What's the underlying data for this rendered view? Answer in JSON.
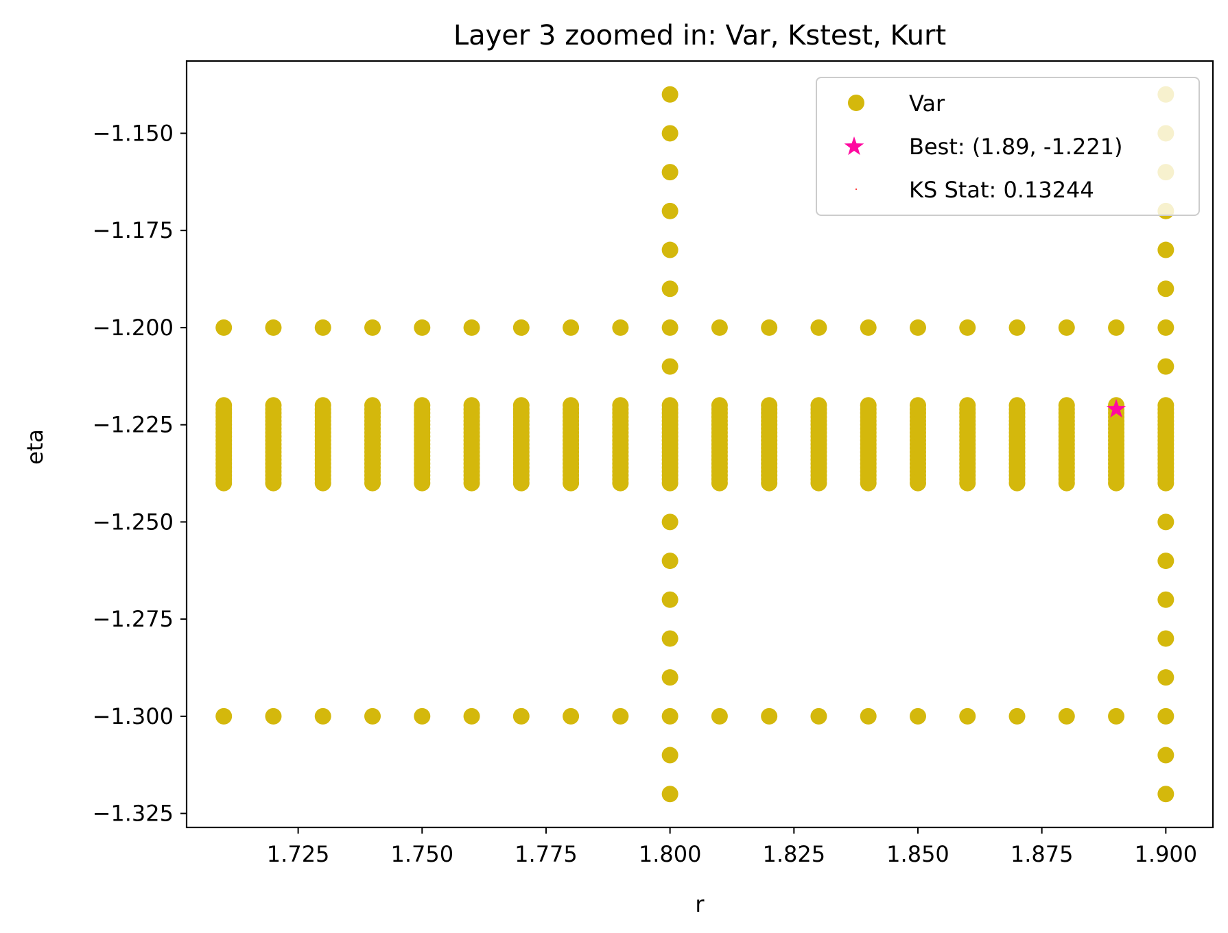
{
  "chart_data": {
    "type": "scatter",
    "title": "Layer 3 zoomed in: Var, Kstest, Kurt",
    "xlabel": "r",
    "ylabel": "eta",
    "xlim": [
      1.7025,
      1.9095
    ],
    "ylim": [
      -1.3286,
      -1.1314
    ],
    "xticks": [
      1.725,
      1.75,
      1.775,
      1.8,
      1.825,
      1.85,
      1.875,
      1.9
    ],
    "xtick_labels": [
      "1.725",
      "1.750",
      "1.775",
      "1.800",
      "1.825",
      "1.850",
      "1.875",
      "1.900"
    ],
    "yticks": [
      -1.15,
      -1.175,
      -1.2,
      -1.225,
      -1.25,
      -1.275,
      -1.3,
      -1.325
    ],
    "ytick_labels": [
      "−1.150",
      "−1.175",
      "−1.200",
      "−1.225",
      "−1.250",
      "−1.275",
      "−1.300",
      "−1.325"
    ],
    "grid": false,
    "legend_position": "top-right",
    "colors": {
      "var": "#d4b80c",
      "best": "#ff0aa0",
      "ks": "#ff0000"
    },
    "series": [
      {
        "name": "Var",
        "marker": "circle",
        "grid_points": {
          "r_values": [
            1.71,
            1.72,
            1.73,
            1.74,
            1.75,
            1.76,
            1.77,
            1.78,
            1.79,
            1.8,
            1.81,
            1.82,
            1.83,
            1.84,
            1.85,
            1.86,
            1.87,
            1.88,
            1.89,
            1.9
          ],
          "eta_dense_range": [
            -1.24,
            -1.22
          ],
          "eta_dense_step": 0.001,
          "eta_rows_all_r": [
            -1.2,
            -1.3
          ],
          "full_columns_r": [
            1.8,
            1.9
          ],
          "full_column_eta": [
            -1.14,
            -1.15,
            -1.16,
            -1.17,
            -1.18,
            -1.19,
            -1.2,
            -1.21,
            -1.25,
            -1.26,
            -1.27,
            -1.28,
            -1.29,
            -1.3,
            -1.31,
            -1.32
          ]
        }
      },
      {
        "name": "Best: (1.89, -1.221)",
        "marker": "star",
        "points": [
          [
            1.89,
            -1.221
          ]
        ]
      },
      {
        "name": "KS Stat: 0.13244",
        "marker": "point",
        "points": []
      }
    ]
  }
}
